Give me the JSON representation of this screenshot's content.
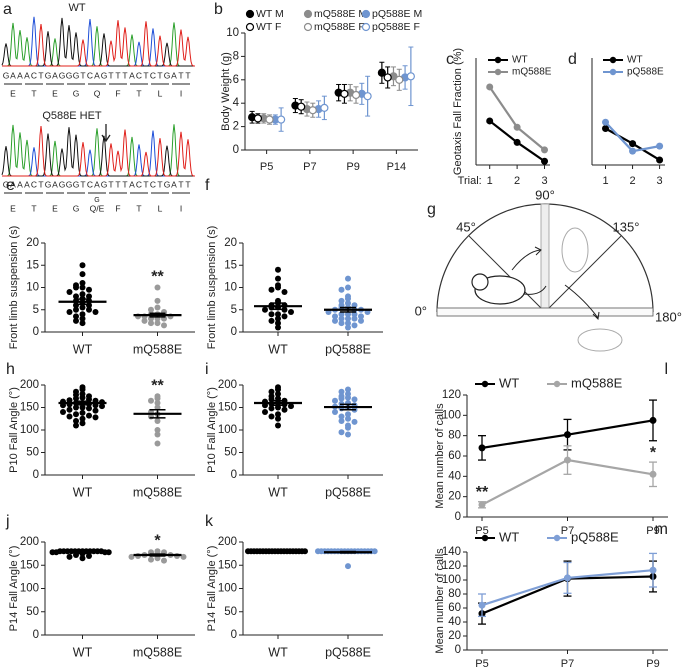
{
  "sequencing": {
    "panel": "a",
    "traces": [
      {
        "label": "WT",
        "bases": [
          "G",
          "A",
          "A",
          "A",
          "C",
          "T",
          "G",
          "A",
          "G",
          "G",
          "G",
          "T",
          "C",
          "A",
          "G",
          "T",
          "T",
          "T",
          "A",
          "C",
          "T",
          "C",
          "T",
          "G",
          "A",
          "T",
          "T"
        ],
        "residues": [
          "E",
          "T",
          "E",
          "G",
          "Q",
          "F",
          "T",
          "L",
          "I"
        ]
      },
      {
        "label": "Q588E HET",
        "bases": [
          "G",
          "A",
          "A",
          "A",
          "C",
          "T",
          "G",
          "A",
          "G",
          "G",
          "G",
          "T",
          "C",
          "A",
          "G",
          "T",
          "T",
          "T",
          "A",
          "C",
          "T",
          "C",
          "T",
          "G",
          "A",
          "T",
          "T"
        ],
        "variant": "G",
        "residues": [
          "E",
          "T",
          "E",
          "G",
          "Q/E",
          "F",
          "T",
          "L",
          "I"
        ]
      }
    ]
  },
  "schematic": {
    "panel": "g",
    "angles": [
      "0°",
      "45°",
      "90°",
      "135°",
      "180°"
    ]
  },
  "chart_data": [
    {
      "type": "errorbar",
      "panel": "b",
      "ylabel": "Body Weight (g)",
      "categories": [
        "P5",
        "P7",
        "P9",
        "P14"
      ],
      "ylim": [
        0,
        10
      ],
      "yticks": [
        0,
        2,
        4,
        6,
        8,
        10
      ],
      "legend": "top",
      "series": [
        {
          "name": "WT M",
          "color": "#000000",
          "open": false,
          "values": [
            2.8,
            3.8,
            4.9,
            6.6
          ],
          "errors": [
            0.5,
            0.6,
            0.7,
            0.9
          ]
        },
        {
          "name": "mQ588E M",
          "color": "#8c8c8c",
          "open": false,
          "values": [
            2.7,
            3.5,
            4.9,
            6.3
          ],
          "errors": [
            0.4,
            0.6,
            0.7,
            0.8
          ]
        },
        {
          "name": "pQ588E M",
          "color": "#6f95d0",
          "open": false,
          "values": [
            2.6,
            3.5,
            4.8,
            6.2
          ],
          "errors": [
            0.4,
            0.7,
            0.9,
            1.0
          ]
        },
        {
          "name": "WT F",
          "color": "#000000",
          "open": true,
          "values": [
            2.7,
            3.7,
            4.8,
            6.2
          ],
          "errors": [
            0.4,
            0.6,
            0.8,
            0.9
          ]
        },
        {
          "name": "mQ588E F",
          "color": "#8c8c8c",
          "open": true,
          "values": [
            2.6,
            3.4,
            4.7,
            6.0
          ],
          "errors": [
            0.4,
            0.6,
            0.7,
            0.9
          ]
        },
        {
          "name": "pQ588E F",
          "color": "#6f95d0",
          "open": true,
          "values": [
            2.6,
            3.6,
            4.6,
            6.3
          ],
          "errors": [
            1.0,
            1.0,
            1.7,
            2.5
          ]
        }
      ]
    },
    {
      "type": "line",
      "panel": "c",
      "ylabel": "Geotaxis Fall Fraction (%)",
      "x": [
        1,
        2,
        3
      ],
      "xlim": [
        0.5,
        3.2
      ],
      "xticks": [
        1,
        2,
        3
      ],
      "xlabel": "Trial:",
      "ylim": [
        0,
        85
      ],
      "legend": "upper right",
      "series": [
        {
          "name": "WT",
          "color": "#000000",
          "values": [
            35,
            18,
            3
          ]
        },
        {
          "name": "mQ588E",
          "color": "#8c8c8c",
          "values": [
            62,
            30,
            12
          ]
        }
      ]
    },
    {
      "type": "line",
      "panel": "d",
      "x": [
        1,
        2,
        3
      ],
      "xlim": [
        0.5,
        3.2
      ],
      "xticks": [
        1,
        2,
        3
      ],
      "ylim": [
        0,
        85
      ],
      "legend": "upper right",
      "series": [
        {
          "name": "WT",
          "color": "#000000",
          "values": [
            29,
            17,
            4
          ]
        },
        {
          "name": "pQ588E",
          "color": "#6f95d0",
          "values": [
            34,
            11,
            15
          ]
        }
      ]
    },
    {
      "type": "dotplot",
      "panel": "e",
      "ylabel": "Front limb suspension (s)",
      "ylim": [
        0,
        20
      ],
      "yticks": [
        0,
        5,
        10,
        15,
        20
      ],
      "groups": [
        {
          "name": "WT",
          "color": "#000000",
          "mean": 6.8,
          "sem": 0.6,
          "points": [
            15,
            13,
            11,
            10.5,
            10,
            10,
            9.5,
            9,
            8.5,
            8,
            8,
            7.5,
            7,
            7,
            6.5,
            6,
            6,
            5.5,
            5,
            5,
            4.5,
            4.5,
            4,
            3.5,
            3,
            2.5,
            2
          ]
        },
        {
          "name": "mQ588E",
          "color": "#9a9a9a",
          "mean": 3.8,
          "sem": 0.4,
          "significance": "**",
          "points": [
            10,
            7,
            5.5,
            5,
            4.5,
            4,
            4,
            4,
            3.5,
            3.5,
            3.5,
            3,
            3,
            3,
            2.5,
            2,
            2,
            1.5
          ]
        }
      ]
    },
    {
      "type": "dotplot",
      "panel": "f",
      "ylabel": "Front limb suspension (s)",
      "ylim": [
        0,
        20
      ],
      "yticks": [
        0,
        5,
        10,
        15,
        20
      ],
      "groups": [
        {
          "name": "WT",
          "color": "#000000",
          "mean": 5.8,
          "sem": 0.7,
          "points": [
            14,
            12,
            10.5,
            10,
            9.5,
            9,
            7,
            6.5,
            6,
            6,
            5.5,
            5.5,
            5,
            5,
            4.5,
            4,
            4,
            3.5,
            3,
            2.5,
            2,
            1
          ]
        },
        {
          "name": "pQ588E",
          "color": "#6f95d0",
          "mean": 5.0,
          "sem": 0.5,
          "points": [
            12,
            10,
            9.5,
            8,
            7.5,
            7,
            6.5,
            6,
            6,
            5.5,
            5.5,
            5,
            5,
            5,
            4.5,
            4.5,
            4,
            4,
            4,
            3.5,
            3.5,
            3,
            3,
            3,
            2.5,
            2.5,
            2,
            2,
            1.5,
            1
          ]
        }
      ]
    },
    {
      "type": "dotplot",
      "panel": "h",
      "ylabel": "P10 Fall Angle (°)",
      "ylim": [
        0,
        200
      ],
      "yticks": [
        0,
        50,
        100,
        150,
        200
      ],
      "groups": [
        {
          "name": "WT",
          "color": "#000000",
          "mean": 160,
          "sem": 4,
          "points": [
            195,
            190,
            185,
            180,
            178,
            175,
            172,
            170,
            168,
            166,
            165,
            163,
            162,
            160,
            160,
            158,
            157,
            155,
            155,
            153,
            150,
            150,
            148,
            145,
            143,
            140,
            138,
            135,
            132,
            130,
            128,
            125,
            120,
            115,
            110
          ]
        },
        {
          "name": "mQ588E",
          "color": "#9a9a9a",
          "mean": 136,
          "sem": 9,
          "significance": "**",
          "points": [
            175,
            170,
            165,
            160,
            150,
            140,
            135,
            130,
            120,
            100,
            90,
            70
          ]
        }
      ]
    },
    {
      "type": "dotplot",
      "panel": "i",
      "ylabel": "P10 Fall Angle (°)",
      "ylim": [
        0,
        200
      ],
      "yticks": [
        0,
        50,
        100,
        150,
        200
      ],
      "groups": [
        {
          "name": "WT",
          "color": "#000000",
          "mean": 160,
          "sem": 5,
          "points": [
            195,
            190,
            185,
            180,
            175,
            170,
            168,
            165,
            163,
            160,
            158,
            157,
            155,
            153,
            150,
            148,
            145,
            140,
            135,
            130,
            125,
            110
          ]
        },
        {
          "name": "pQ588E",
          "color": "#6f95d0",
          "mean": 151,
          "sem": 6,
          "points": [
            190,
            185,
            180,
            175,
            172,
            170,
            168,
            165,
            160,
            158,
            155,
            152,
            150,
            148,
            145,
            140,
            135,
            130,
            125,
            120,
            118,
            110,
            105,
            95,
            90
          ]
        }
      ]
    },
    {
      "type": "dotplot",
      "panel": "j",
      "ylabel": "P14 Fall Angle (°)",
      "ylim": [
        0,
        200
      ],
      "yticks": [
        0,
        50,
        100,
        150,
        200
      ],
      "groups": [
        {
          "name": "WT",
          "color": "#000000",
          "mean": 178,
          "sem": 1,
          "points": [
            180,
            180,
            180,
            180,
            180,
            180,
            180,
            180,
            180,
            180,
            180,
            180,
            178,
            178,
            178,
            178,
            175,
            172,
            170,
            168,
            165
          ]
        },
        {
          "name": "mQ588E",
          "color": "#9a9a9a",
          "mean": 172,
          "sem": 2,
          "significance": "*",
          "points": [
            180,
            178,
            178,
            175,
            175,
            175,
            172,
            172,
            170,
            170,
            168,
            168,
            165,
            162,
            160
          ]
        }
      ]
    },
    {
      "type": "dotplot",
      "panel": "k",
      "ylabel": "P14 Fall Angle (°)",
      "ylim": [
        0,
        200
      ],
      "yticks": [
        0,
        50,
        100,
        150,
        200
      ],
      "groups": [
        {
          "name": "WT",
          "color": "#000000",
          "mean": 178,
          "sem": 0.5,
          "points": [
            180,
            180,
            180,
            180,
            180,
            180,
            180,
            180,
            180,
            180,
            180,
            180,
            180,
            180,
            180,
            180,
            180,
            180,
            180,
            180
          ]
        },
        {
          "name": "pQ588E",
          "color": "#6f95d0",
          "mean": 178,
          "sem": 1.5,
          "points": [
            180,
            180,
            180,
            180,
            180,
            180,
            180,
            180,
            180,
            180,
            180,
            180,
            180,
            180,
            180,
            180,
            180,
            180,
            148
          ]
        }
      ]
    },
    {
      "type": "line",
      "panel": "l",
      "ylabel": "Mean number of calls",
      "categories": [
        "P5",
        "P7",
        "P9"
      ],
      "ylim": [
        0,
        120
      ],
      "yticks": [
        0,
        20,
        40,
        60,
        80,
        100,
        120
      ],
      "legend": "top",
      "series": [
        {
          "name": "WT",
          "color": "#000000",
          "values": [
            68,
            81,
            95
          ],
          "errors": [
            12,
            15,
            20
          ]
        },
        {
          "name": "mQ588E",
          "color": "#a6a6a6",
          "values": [
            12,
            56,
            42
          ],
          "errors": [
            3,
            14,
            12
          ],
          "significance": [
            "**",
            null,
            "*"
          ]
        }
      ]
    },
    {
      "type": "line",
      "panel": "m",
      "ylabel": "Mean number of calls",
      "categories": [
        "P5",
        "P7",
        "P9"
      ],
      "ylim": [
        0,
        140
      ],
      "yticks": [
        0,
        20,
        40,
        60,
        80,
        100,
        120,
        140
      ],
      "legend": "top",
      "series": [
        {
          "name": "WT",
          "color": "#000000",
          "values": [
            52,
            102,
            105
          ],
          "errors": [
            15,
            25,
            22
          ]
        },
        {
          "name": "pQ588E",
          "color": "#7f9fd6",
          "values": [
            64,
            103,
            114
          ],
          "errors": [
            16,
            22,
            24
          ]
        }
      ]
    }
  ]
}
